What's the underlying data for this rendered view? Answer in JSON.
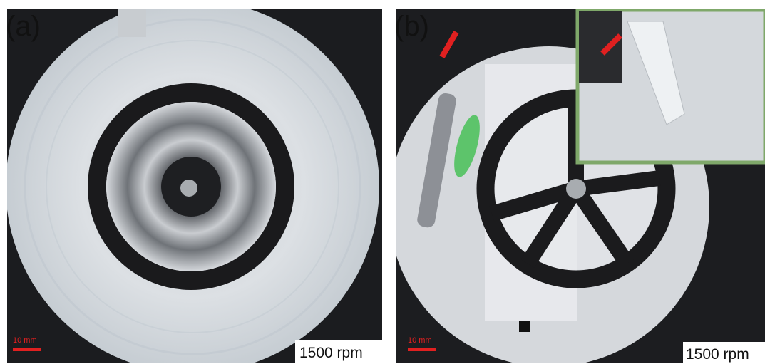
{
  "panels": [
    {
      "label": "(a)",
      "scale_bar": "10 mm",
      "speed": "1500 rpm"
    },
    {
      "label": "(b)",
      "scale_bar": "10 mm",
      "speed": "1500 rpm"
    }
  ]
}
